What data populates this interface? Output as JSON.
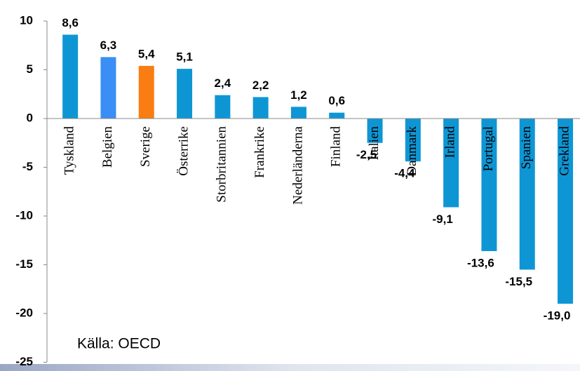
{
  "chart_data": {
    "type": "bar",
    "categories": [
      "Tyskland",
      "Belgien",
      "Sverige",
      "Österrike",
      "Storbritannien",
      "Frankrike",
      "Nederländerna",
      "Finland",
      "Italien",
      "Danmark",
      "Irland",
      "Portugal",
      "Spanien",
      "Grekland"
    ],
    "values": [
      8.6,
      6.3,
      5.4,
      5.1,
      2.4,
      2.2,
      1.2,
      0.6,
      -2.5,
      -4.4,
      -9.1,
      -13.6,
      -15.5,
      -19.0
    ],
    "value_labels": [
      "8,6",
      "6,3",
      "5,4",
      "5,1",
      "2,4",
      "2,2",
      "1,2",
      "0,6",
      "-2,5",
      "-4,4",
      "-9,1",
      "-13,6",
      "-15,5",
      "-19,0"
    ],
    "colors": [
      "#0e96d4",
      "#3a8ef5",
      "#f97d12",
      "#0e96d4",
      "#0e96d4",
      "#0e96d4",
      "#0e96d4",
      "#0e96d4",
      "#0e96d4",
      "#0e96d4",
      "#0e96d4",
      "#0e96d4",
      "#0e96d4",
      "#0e96d4"
    ],
    "ylim": [
      -25,
      10
    ],
    "yticks": [
      10,
      5,
      0,
      -5,
      -10,
      -15,
      -20,
      -25
    ],
    "annotation": "Källa: OECD"
  }
}
